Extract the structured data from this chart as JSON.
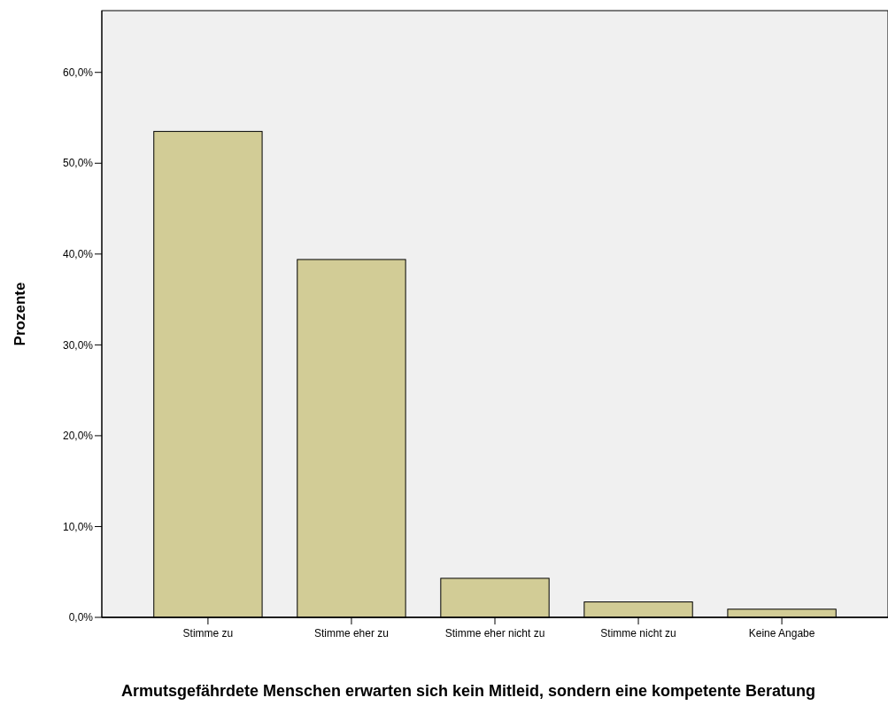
{
  "chart_data": {
    "type": "bar",
    "xlabel": "Armutsgefährdete Menschen erwarten sich kein Mitleid, sondern eine kompetente Beratung",
    "ylabel": "Prozente",
    "categories": [
      "Stimme zu",
      "Stimme eher zu",
      "Stimme eher nicht zu",
      "Stimme nicht zu",
      "Keine Angabe"
    ],
    "values": [
      53.5,
      39.4,
      4.3,
      1.7,
      0.9
    ],
    "color": "#d2cc96",
    "ylim": [
      0,
      66.8
    ],
    "yticks": [
      {
        "value": 0,
        "label": "0,0%"
      },
      {
        "value": 10,
        "label": "10,0%"
      },
      {
        "value": 20,
        "label": "20,0%"
      },
      {
        "value": 30,
        "label": "30,0%"
      },
      {
        "value": 40,
        "label": "40,0%"
      },
      {
        "value": 50,
        "label": "50,0%"
      },
      {
        "value": 60,
        "label": "60,0%"
      }
    ],
    "grid": false
  }
}
